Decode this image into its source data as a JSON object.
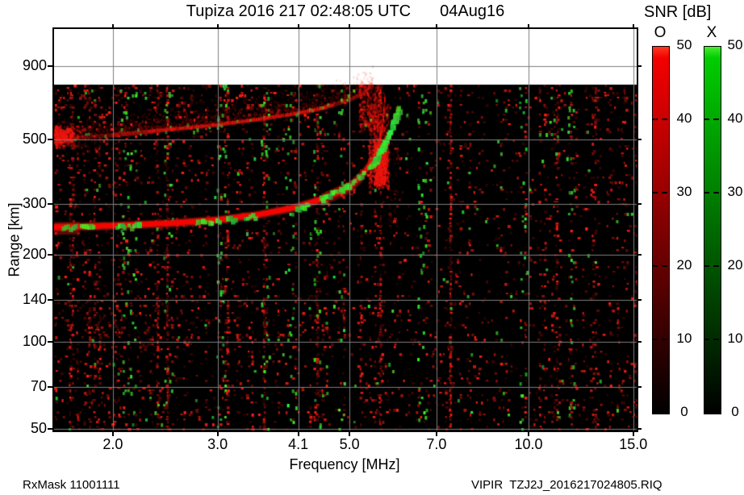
{
  "ui": {
    "title_left": "Tupiza 2016 217 02:48:05 UTC",
    "title_right": "04Aug16",
    "footer_left": "RxMask 11001111",
    "footer_right": "VIPIR  TZJ2J_2016217024805.RIQ",
    "colorbar": {
      "header": "SNR [dB]",
      "o_label": "O",
      "x_label": "X",
      "tick_labels": [
        "50",
        "40",
        "30",
        "20",
        "10",
        "0"
      ],
      "tick_values": [
        50,
        40,
        30,
        20,
        10,
        0
      ],
      "min": 0,
      "max": 50
    }
  },
  "chart_data": {
    "type": "heatmap",
    "subtype": "ionogram",
    "station": "Tupiza",
    "datetime_utc": "2016 217 02:48:05 UTC",
    "date": "04Aug16",
    "xaxis": {
      "label": "Frequency [MHz]",
      "scale": "log",
      "ticks": [
        2.0,
        3.0,
        4.1,
        5.0,
        7.0,
        10.0,
        15.0
      ],
      "tick_labels": [
        "2.0",
        "3.0",
        "4.1",
        "5.0",
        "7.0",
        "10.0",
        "15.0"
      ],
      "range_mhz": [
        1.59,
        15.2
      ]
    },
    "yaxis": {
      "label": "Range [km]",
      "scale": "log",
      "ticks": [
        900,
        500,
        300,
        200,
        140,
        100,
        70,
        50
      ],
      "tick_labels": [
        "900",
        "500",
        "300",
        "200",
        "140",
        "100",
        "70",
        "50"
      ],
      "range_km": [
        49,
        1215
      ],
      "data_top_km": 790
    },
    "colorbars": [
      {
        "name": "O",
        "quantity": "SNR [dB]",
        "color": "#ff0000",
        "min": 0,
        "max": 50
      },
      {
        "name": "X",
        "quantity": "SNR [dB]",
        "color": "#00cc00",
        "min": 0,
        "max": 50
      }
    ],
    "traces": {
      "o_trace_f_km": [
        [
          1.59,
          250
        ],
        [
          2.0,
          253
        ],
        [
          2.5,
          258
        ],
        [
          3.0,
          265
        ],
        [
          3.5,
          276
        ],
        [
          4.0,
          291
        ],
        [
          4.5,
          313
        ],
        [
          5.0,
          345
        ],
        [
          5.25,
          380
        ],
        [
          5.45,
          425
        ],
        [
          5.58,
          480
        ],
        [
          5.66,
          550
        ],
        [
          5.7,
          640
        ],
        [
          5.72,
          700
        ]
      ],
      "x_trace_f_km": [
        [
          4.45,
          318
        ],
        [
          5.0,
          358
        ],
        [
          5.3,
          398
        ],
        [
          5.5,
          438
        ],
        [
          5.65,
          480
        ],
        [
          5.8,
          540
        ],
        [
          5.92,
          610
        ],
        [
          6.0,
          640
        ]
      ],
      "o_second_hop_f_km": [
        [
          1.59,
          505
        ],
        [
          2.0,
          520
        ],
        [
          2.5,
          545
        ],
        [
          3.0,
          565
        ],
        [
          3.5,
          590
        ],
        [
          4.0,
          615
        ],
        [
          4.5,
          645
        ],
        [
          5.0,
          690
        ],
        [
          5.25,
          725
        ],
        [
          5.45,
          780
        ]
      ],
      "x_on_o_segments_mhz": [
        [
          1.64,
          1.73
        ],
        [
          1.76,
          1.86
        ],
        [
          2.02,
          2.21
        ],
        [
          2.76,
          3.03
        ],
        [
          3.1,
          3.22
        ],
        [
          3.32,
          3.5
        ],
        [
          4.05,
          4.25
        ]
      ],
      "critical_frequency_o_mhz": 5.72,
      "critical_frequency_x_mhz": 6.0
    },
    "noise": {
      "green_columns_mhz": [
        2.07,
        2.14,
        2.46,
        3.03,
        3.58,
        3.93,
        4.38,
        4.81,
        6.58,
        9.72,
        11.73
      ],
      "description": "sparse red speckle over black background, denser below 3 MHz and in 100-130 km band; sparse green speckle in vertical columns"
    }
  },
  "colors": {
    "o_red": "#ff0000",
    "x_green": "#00cc00",
    "grid": "#7e7e7e",
    "background": "#ffffff",
    "data_background": "#000000"
  }
}
